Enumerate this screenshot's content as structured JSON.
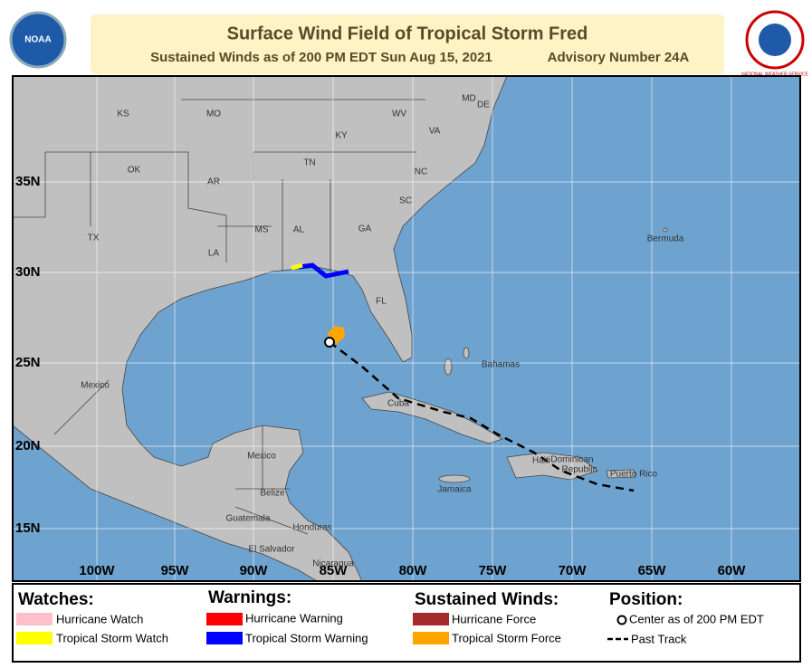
{
  "header": {
    "title": "Surface Wind Field of Tropical Storm Fred",
    "subtitle": "Sustained Winds as of 200 PM EDT Sun Aug 15, 2021",
    "advisory": "Advisory Number 24A",
    "left_logo": "NOAA",
    "right_logo": "NATIONAL WEATHER SERVICE"
  },
  "map": {
    "latitude_labels": [
      "35N",
      "30N",
      "25N",
      "20N",
      "15N"
    ],
    "longitude_labels": [
      "100W",
      "95W",
      "90W",
      "85W",
      "80W",
      "75W",
      "70W",
      "65W",
      "60W"
    ],
    "place_labels": [
      "KS",
      "MO",
      "WV",
      "VA",
      "KY",
      "TN",
      "NC",
      "OK",
      "AR",
      "SC",
      "MS",
      "AL",
      "GA",
      "TX",
      "LA",
      "FL",
      "MD",
      "DE",
      "Bermuda",
      "Bahamas",
      "Mexico",
      "Cuba",
      "Mexico",
      "Haiti",
      "Dominican",
      "Republic",
      "Puerto Rico",
      "Jamaica",
      "Belize",
      "Guatemala",
      "Honduras",
      "El Salvador",
      "Nicaragua"
    ]
  },
  "legend": {
    "watches": {
      "title": "Watches:",
      "items": [
        "Hurricane Watch",
        "Tropical Storm Watch"
      ]
    },
    "warnings": {
      "title": "Warnings:",
      "items": [
        "Hurricane Warning",
        "Tropical Storm Warning"
      ]
    },
    "winds": {
      "title": "Sustained Winds:",
      "items": [
        "Hurricane Force",
        "Tropical Storm Force"
      ]
    },
    "position": {
      "title": "Position:",
      "items": [
        "Center as of 200 PM EDT",
        "Past Track"
      ]
    }
  }
}
